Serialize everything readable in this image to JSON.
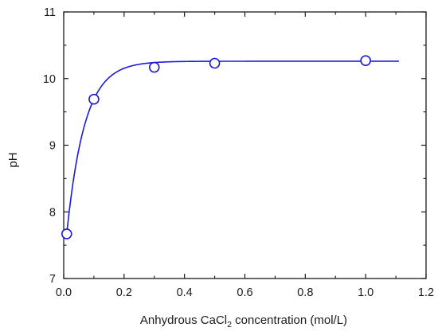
{
  "chart_data": {
    "type": "scatter",
    "title": "",
    "xlabel": {
      "prefix": "Anhydrous CaCl",
      "subscript": "2",
      "suffix": " concentration  (mol/L)"
    },
    "ylabel": "pH",
    "xlim": [
      0.0,
      1.2
    ],
    "ylim": [
      7,
      11
    ],
    "xticks": [
      "0.0",
      "0.2",
      "0.4",
      "0.6",
      "0.8",
      "1.0",
      "1.2"
    ],
    "yticks": [
      "7",
      "8",
      "9",
      "10",
      "11"
    ],
    "grid": false,
    "legend": "none",
    "colors": {
      "series": "#1a1ad6",
      "axis": "#1a1a1a",
      "marker_fill": "#ffffff"
    },
    "series": [
      {
        "marker": "open-circle",
        "x": [
          0.01,
          0.1,
          0.3,
          0.5,
          1.0
        ],
        "y": [
          7.67,
          9.69,
          10.17,
          10.23,
          10.27
        ]
      }
    ],
    "fit_curve": {
      "style": "smooth-line",
      "x_range": [
        0.01,
        1.11
      ],
      "y_start": 7.67,
      "y_plateau": 10.26
    }
  }
}
